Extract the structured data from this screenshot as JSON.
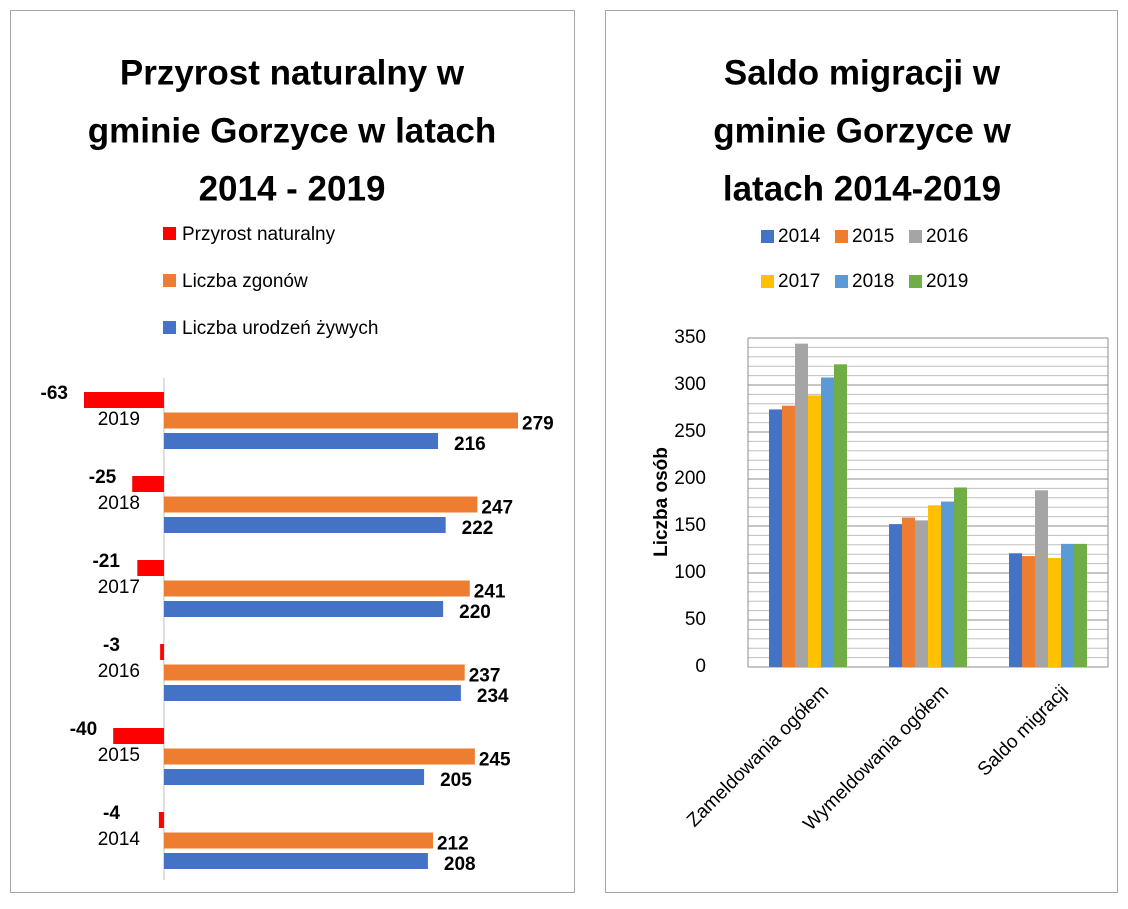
{
  "chart_data": [
    {
      "type": "hbar",
      "title": [
        "Przyrost naturalny w",
        "gminie Gorzyce w latach",
        "2014 - 2019"
      ],
      "categories": [
        "2014",
        "2015",
        "2016",
        "2017",
        "2018",
        "2019"
      ],
      "series": [
        {
          "name": "Przyrost naturalny",
          "color": "#ff0000",
          "values": [
            -4,
            -40,
            -3,
            -21,
            -25,
            -63
          ]
        },
        {
          "name": "Liczba zgonów",
          "color": "#ed7d31",
          "values": [
            212,
            245,
            237,
            241,
            247,
            279
          ]
        },
        {
          "name": "Liczba urodzeń żywych",
          "color": "#4472c4",
          "values": [
            208,
            205,
            234,
            220,
            222,
            216
          ]
        }
      ]
    },
    {
      "type": "bar",
      "title": [
        "Saldo migracji w",
        "gminie Gorzyce w",
        "latach 2014-2019"
      ],
      "y_label": "Liczba osób",
      "categories": [
        "Zameldowania ogółem",
        "Wymeldowania ogółem",
        "Saldo migracji"
      ],
      "series": [
        {
          "name": "2014",
          "color": "#4472c4",
          "values": [
            274,
            152,
            121
          ]
        },
        {
          "name": "2015",
          "color": "#ed7d31",
          "values": [
            278,
            159,
            118
          ]
        },
        {
          "name": "2016",
          "color": "#a5a5a5",
          "values": [
            344,
            156,
            188
          ]
        },
        {
          "name": "2017",
          "color": "#ffc000",
          "values": [
            289,
            172,
            116
          ]
        },
        {
          "name": "2018",
          "color": "#5b9bd5",
          "values": [
            308,
            176,
            131
          ]
        },
        {
          "name": "2019",
          "color": "#70ad47",
          "values": [
            322,
            191,
            131
          ]
        }
      ],
      "ylim": [
        0,
        350
      ],
      "yticks": [
        0,
        50,
        100,
        150,
        200,
        250,
        300,
        350
      ],
      "grid": true,
      "minor_grid": true
    }
  ]
}
